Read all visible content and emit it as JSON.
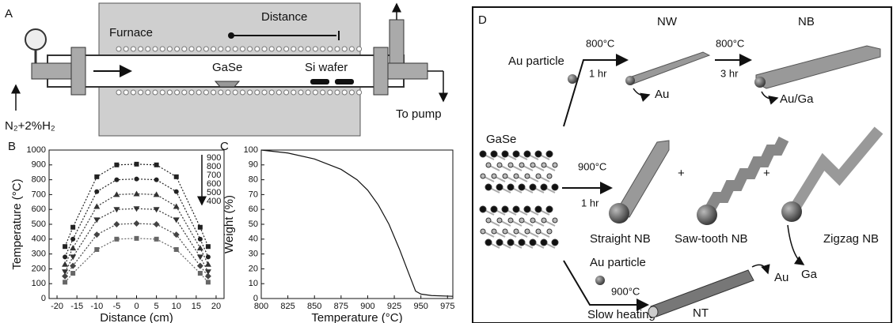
{
  "panel_a": {
    "letter": "A",
    "furnace": "Furnace",
    "distance": "Distance",
    "gase": "GaSe",
    "si_wafer": "Si wafer",
    "gas": "N₂+2%H₂",
    "pump": "To pump"
  },
  "panel_d": {
    "letter": "D",
    "nw": "NW",
    "nb": "NB",
    "au_particle_1": "Au particle",
    "temp_1": "800°C",
    "time_1": "1 hr",
    "au_1": "Au",
    "temp_2": "800°C",
    "time_2": "3 hr",
    "au_ga": "Au/Ga",
    "gase": "GaSe",
    "temp_3": "900°C",
    "time_3": "1 hr",
    "plus_1": "+",
    "plus_2": "+",
    "straight_nb": "Straight NB",
    "sawtooth_nb": "Saw-tooth NB",
    "zigzag_nb": "Zigzag NB",
    "ga": "Ga",
    "au_particle_2": "Au particle",
    "temp_4": "900°C",
    "slow_heating": "Slow heating",
    "nt": "NT",
    "au_2": "Au"
  },
  "chart_data": [
    {
      "type": "line",
      "letter": "B",
      "x_label": "Distance (cm)",
      "y_label": "Temperature (°C)",
      "x": [
        -18,
        -16,
        -10,
        -5,
        0,
        5,
        10,
        16,
        18
      ],
      "xlim": [
        -22,
        22
      ],
      "xticks": [
        -20,
        -15,
        -10,
        -5,
        0,
        5,
        10,
        15,
        20
      ],
      "ylim": [
        0,
        1000
      ],
      "yticks": [
        0,
        100,
        200,
        300,
        400,
        500,
        600,
        700,
        800,
        900,
        1000
      ],
      "line_style": "dotted",
      "legend": "upper right",
      "series": [
        {
          "name": "900",
          "color": "#222222",
          "marker": "square",
          "values": [
            350,
            480,
            820,
            900,
            905,
            900,
            820,
            480,
            350
          ]
        },
        {
          "name": "800",
          "color": "#222222",
          "marker": "circle",
          "values": [
            280,
            400,
            720,
            800,
            805,
            800,
            720,
            400,
            280
          ]
        },
        {
          "name": "700",
          "color": "#333333",
          "marker": "triangle",
          "values": [
            230,
            340,
            620,
            700,
            705,
            700,
            620,
            340,
            230
          ]
        },
        {
          "name": "600",
          "color": "#333333",
          "marker": "triangle-down",
          "values": [
            180,
            280,
            530,
            600,
            605,
            600,
            530,
            280,
            180
          ]
        },
        {
          "name": "500",
          "color": "#444444",
          "marker": "diamond",
          "values": [
            150,
            220,
            430,
            500,
            505,
            500,
            430,
            220,
            150
          ]
        },
        {
          "name": "400",
          "color": "#666666",
          "marker": "square",
          "values": [
            110,
            170,
            330,
            400,
            405,
            400,
            330,
            170,
            110
          ]
        }
      ]
    },
    {
      "type": "line",
      "letter": "C",
      "x_label": "Temperature (°C)",
      "y_label": "Weight (%)",
      "x": [
        800,
        825,
        850,
        875,
        890,
        900,
        910,
        920,
        930,
        938,
        945,
        950,
        960,
        980
      ],
      "values": [
        100,
        98,
        94,
        87,
        80,
        73,
        63,
        50,
        33,
        18,
        5,
        3,
        2,
        1.5
      ],
      "color": "#111111",
      "line_style": "solid",
      "xlim": [
        800,
        980
      ],
      "xticks": [
        800,
        825,
        850,
        875,
        900,
        925,
        950,
        975
      ],
      "ylim": [
        0,
        100
      ],
      "yticks": [
        0,
        10,
        20,
        30,
        40,
        50,
        60,
        70,
        80,
        90,
        100
      ]
    }
  ]
}
